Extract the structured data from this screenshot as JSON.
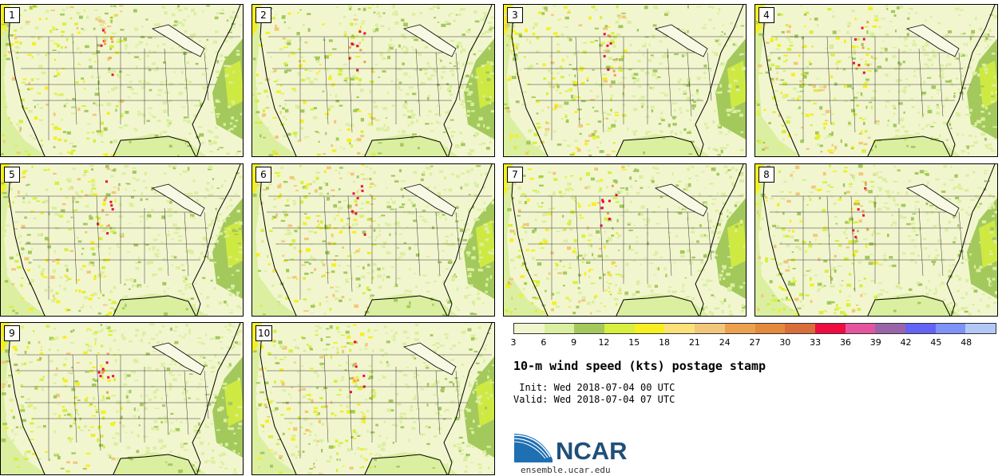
{
  "chart_data": {
    "type": "heatmap",
    "title": "10-m wind speed (kts) postage stamp",
    "init_label": "Init:",
    "init_time": "Wed 2018-07-04 00 UTC",
    "valid_label": "Valid:",
    "valid_time": "Wed 2018-07-04 07 UTC",
    "panels": [
      "1",
      "2",
      "3",
      "4",
      "5",
      "6",
      "7",
      "8",
      "9",
      "10"
    ],
    "colorbar": {
      "ticks": [
        "3",
        "6",
        "9",
        "12",
        "15",
        "18",
        "21",
        "24",
        "27",
        "30",
        "33",
        "36",
        "39",
        "42",
        "45",
        "48"
      ],
      "colors": [
        "#f2f6cf",
        "#dbefa0",
        "#a3c95c",
        "#d7ef3e",
        "#f6ef21",
        "#fce17a",
        "#f2c77a",
        "#eba150",
        "#e38a3b",
        "#d86e3a",
        "#ee0c41",
        "#e5559f",
        "#9a65a8",
        "#6562f6",
        "#7d93f7",
        "#b3c8f7"
      ]
    }
  },
  "logo": {
    "name": "NCAR",
    "url": "ensemble.ucar.edu"
  }
}
